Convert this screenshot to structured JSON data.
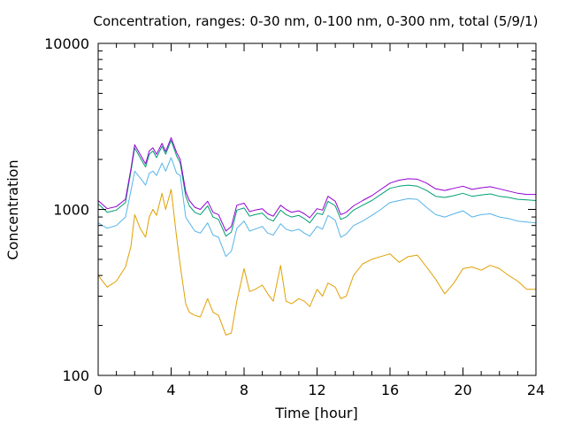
{
  "chart_data": {
    "type": "line",
    "title": "Concentration, ranges: 0-30 nm, 0-100 nm, 0-300 nm, total (5/9/1)",
    "xlabel": "Time [hour]",
    "ylabel": "Concentration",
    "xlim": [
      0,
      24
    ],
    "ylim": [
      100,
      10000
    ],
    "y_scale": "log",
    "grid": false,
    "legend": "none",
    "x_ticks": [
      "0",
      "4",
      "8",
      "12",
      "16",
      "20",
      "24"
    ],
    "y_ticks": [
      "100",
      "1000",
      "10000"
    ],
    "x": [
      0,
      0.5,
      1,
      1.5,
      1.8,
      2,
      2.3,
      2.6,
      2.8,
      3,
      3.2,
      3.5,
      3.7,
      4,
      4.3,
      4.5,
      4.8,
      5,
      5.3,
      5.6,
      6,
      6.3,
      6.6,
      7,
      7.3,
      7.6,
      8,
      8.3,
      8.6,
      9,
      9.3,
      9.6,
      10,
      10.3,
      10.6,
      11,
      11.3,
      11.6,
      12,
      12.3,
      12.6,
      13,
      13.3,
      13.6,
      14,
      14.5,
      15,
      15.5,
      16,
      16.5,
      17,
      17.5,
      18,
      18.5,
      19,
      19.5,
      20,
      20.5,
      21,
      21.5,
      22,
      22.5,
      23,
      23.5,
      24
    ],
    "series": [
      {
        "color": "#e0a000",
        "values": [
          400,
          340,
          370,
          450,
          600,
          930,
          770,
          680,
          900,
          1000,
          920,
          1250,
          1000,
          1320,
          680,
          460,
          270,
          240,
          230,
          225,
          290,
          240,
          230,
          175,
          180,
          280,
          440,
          320,
          330,
          350,
          310,
          280,
          460,
          280,
          270,
          290,
          280,
          260,
          330,
          300,
          360,
          340,
          290,
          300,
          400,
          470,
          500,
          520,
          540,
          480,
          520,
          530,
          450,
          380,
          310,
          360,
          440,
          450,
          430,
          460,
          440,
          400,
          370,
          330,
          330
        ]
      },
      {
        "color": "#56b4e9",
        "values": [
          830,
          770,
          800,
          900,
          1300,
          1700,
          1550,
          1400,
          1650,
          1700,
          1600,
          1900,
          1700,
          2050,
          1650,
          1600,
          900,
          830,
          740,
          720,
          830,
          700,
          680,
          520,
          560,
          770,
          850,
          740,
          760,
          790,
          720,
          700,
          820,
          760,
          740,
          760,
          720,
          690,
          790,
          760,
          920,
          860,
          680,
          710,
          800,
          850,
          920,
          1000,
          1100,
          1130,
          1160,
          1150,
          1030,
          930,
          900,
          940,
          980,
          900,
          930,
          940,
          900,
          880,
          850,
          840,
          830
        ]
      },
      {
        "color": "#009e73",
        "values": [
          1080,
          960,
          990,
          1100,
          1700,
          2350,
          2050,
          1800,
          2150,
          2250,
          2050,
          2400,
          2150,
          2600,
          2100,
          1900,
          1200,
          1050,
          960,
          930,
          1050,
          900,
          870,
          690,
          730,
          990,
          1020,
          910,
          930,
          950,
          880,
          850,
          990,
          930,
          900,
          920,
          880,
          830,
          950,
          930,
          1120,
          1050,
          870,
          900,
          990,
          1060,
          1130,
          1230,
          1340,
          1380,
          1400,
          1380,
          1300,
          1200,
          1180,
          1210,
          1250,
          1200,
          1220,
          1240,
          1200,
          1180,
          1150,
          1140,
          1130
        ]
      },
      {
        "color": "#9400d3",
        "values": [
          1130,
          1010,
          1040,
          1150,
          1760,
          2450,
          2150,
          1880,
          2250,
          2350,
          2150,
          2500,
          2230,
          2700,
          2200,
          2000,
          1280,
          1130,
          1030,
          1000,
          1120,
          960,
          930,
          740,
          790,
          1060,
          1090,
          970,
          990,
          1010,
          940,
          910,
          1060,
          1000,
          960,
          980,
          940,
          890,
          1010,
          990,
          1200,
          1120,
          930,
          960,
          1050,
          1130,
          1210,
          1320,
          1440,
          1500,
          1530,
          1520,
          1440,
          1330,
          1300,
          1340,
          1380,
          1320,
          1350,
          1370,
          1330,
          1290,
          1250,
          1230,
          1230
        ]
      }
    ]
  }
}
